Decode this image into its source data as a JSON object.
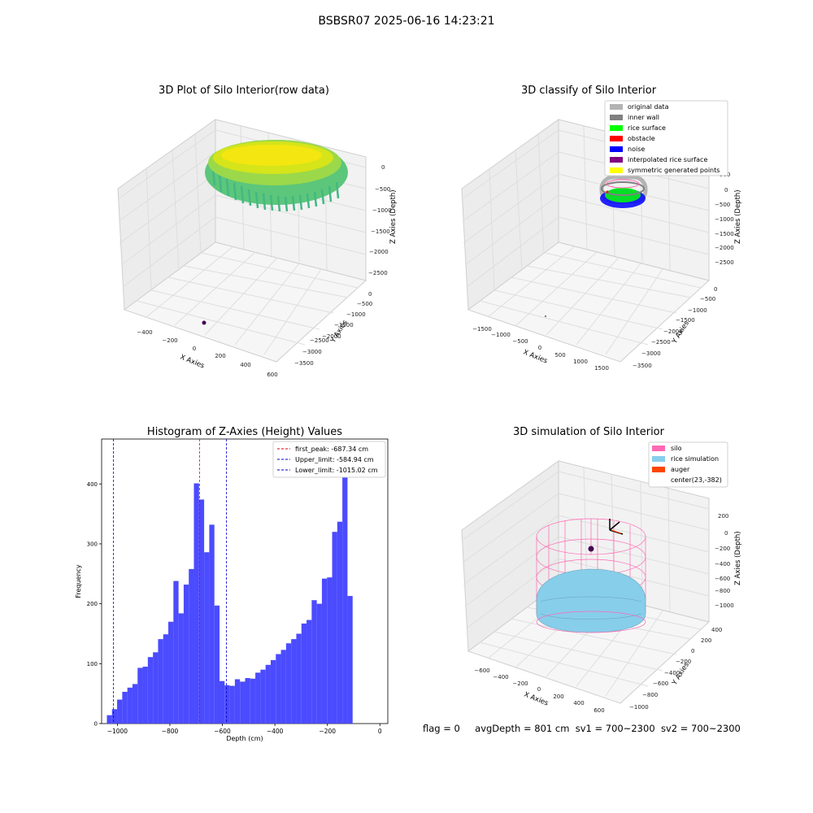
{
  "suptitle": "BSBSR07 2025-06-16 14:23:21",
  "colors": {
    "hist_bar": "#4b4bff",
    "first_peak": "#e00000",
    "limit": "#0000cc",
    "original": "#b3b3b3",
    "inner_wall": "#808080",
    "rice_surface": "#00ff00",
    "obstacle": "#ff0000",
    "noise": "#0000ff",
    "interpolated": "#800080",
    "symmetric": "#ffff00",
    "silo": "#ff69b4",
    "rice_sim": "#87ceeb",
    "auger": "#ff4500"
  },
  "panel1": {
    "title": "3D Plot of Silo Interior(row data)",
    "xlabel": "X Axies",
    "ylabel": "Y Axies",
    "zlabel": "Z Axies (Depth)",
    "xticks": [
      "−400",
      "−200",
      "0",
      "200",
      "400",
      "600"
    ],
    "yticks": [
      "0",
      "−500",
      "−1000",
      "−1500",
      "−2000",
      "−2500",
      "−3000",
      "−3500"
    ],
    "zticks": [
      "0",
      "−500",
      "−1000",
      "−1500",
      "−2000",
      "−2500"
    ]
  },
  "panel2": {
    "title": "3D classify of Silo Interior",
    "xlabel": "X Axies",
    "ylabel": "Y Axies",
    "zlabel": "Z Axies (Depth)",
    "xticks": [
      "−1500",
      "−1000",
      "−500",
      "0",
      "500",
      "1000",
      "1500"
    ],
    "yticks": [
      "0",
      "−500",
      "−1000",
      "−1500",
      "−2000",
      "−2500",
      "−3000",
      "−3500"
    ],
    "zticks": [
      "500",
      "0",
      "−500",
      "−1000",
      "−1500",
      "−2000",
      "−2500"
    ],
    "legend": [
      "original data",
      "inner wall",
      "rice surface",
      "obstacle",
      "noise",
      "interpolated rice surface",
      "symmetric generated points"
    ]
  },
  "panel4": {
    "title": "3D simulation of Silo Interior",
    "xlabel": "X Axies",
    "ylabel": "Y Axies",
    "zlabel": "Z Axies (Depth)",
    "xticks": [
      "−600",
      "−400",
      "−200",
      "0",
      "200",
      "400",
      "600"
    ],
    "yticks": [
      "400",
      "200",
      "0",
      "−200",
      "−400",
      "−600",
      "−800",
      "−1000"
    ],
    "zticks": [
      "200",
      "0",
      "−200",
      "−400",
      "−600",
      "−800",
      "−1000"
    ],
    "legend": [
      "silo",
      "rice simulation",
      "auger",
      "center(23,-382)"
    ]
  },
  "bottom_text": {
    "flag": "flag = 0",
    "avg": "avgDepth = 801 cm",
    "sv1": "sv1 = 700~2300",
    "sv2": "sv2 = 700~2300"
  },
  "chart_data": {
    "type": "bar",
    "title": "Histogram of Z-Axies (Height) Values",
    "xlabel": "Depth (cm)",
    "ylabel": "Frequency",
    "xlim": [
      -1060,
      30
    ],
    "ylim": [
      0,
      475
    ],
    "xticks": [
      -1000,
      -800,
      -600,
      -400,
      -200,
      0
    ],
    "yticks": [
      0,
      100,
      200,
      300,
      400
    ],
    "bin_start": -1040,
    "bin_width": 19.5,
    "values": [
      14,
      24,
      40,
      53,
      60,
      66,
      93,
      95,
      111,
      119,
      141,
      149,
      170,
      238,
      184,
      232,
      258,
      401,
      374,
      286,
      332,
      197,
      71,
      64,
      63,
      74,
      70,
      76,
      75,
      85,
      90,
      98,
      106,
      116,
      123,
      134,
      141,
      150,
      167,
      173,
      206,
      200,
      242,
      244,
      320,
      337,
      450,
      213
    ],
    "vlines": [
      {
        "label": "first_peak: -687.34 cm",
        "x": -687.34,
        "color": "#e00000"
      },
      {
        "label": "Upper_limit: -584.94 cm",
        "x": -584.94,
        "color": "#0000cc"
      },
      {
        "label": "Lower_limit: -1015.02 cm",
        "x": -1015.02,
        "color": "#0000cc"
      }
    ]
  }
}
